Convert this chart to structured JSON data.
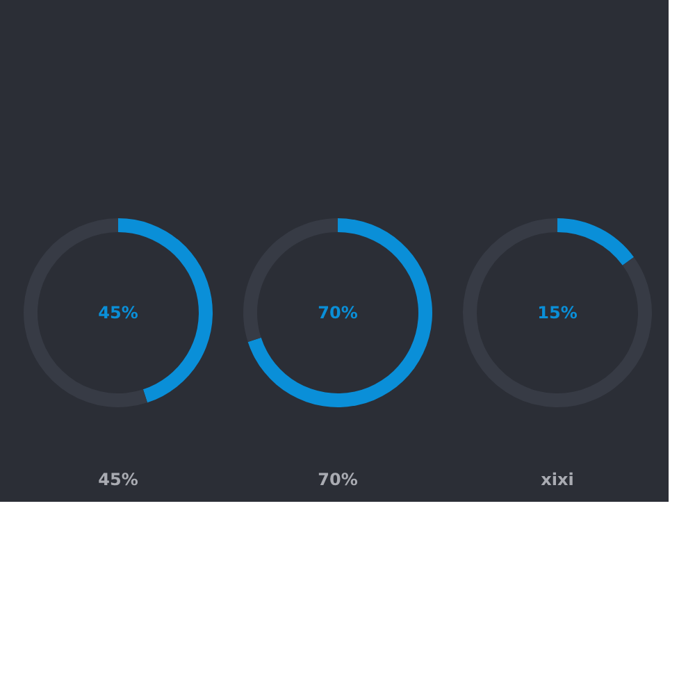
{
  "chart_data": [
    {
      "type": "donut",
      "categories": [
        null,
        null
      ],
      "values": [
        45,
        55
      ],
      "colors": [
        "#0a8fd8",
        "#373b45"
      ],
      "annotations": [
        "45%"
      ],
      "xlabel": "45%"
    },
    {
      "type": "donut",
      "categories": [
        null,
        null
      ],
      "values": [
        70,
        30
      ],
      "colors": [
        "#0a8fd8",
        "#373b45"
      ],
      "annotations": [
        "70%"
      ],
      "xlabel": "70%"
    },
    {
      "type": "donut",
      "categories": [
        null,
        null
      ],
      "values": [
        15,
        85
      ],
      "colors": [
        "#0a8fd8",
        "#373b45"
      ],
      "annotations": [
        "15%"
      ],
      "xlabel": "xixi"
    }
  ]
}
